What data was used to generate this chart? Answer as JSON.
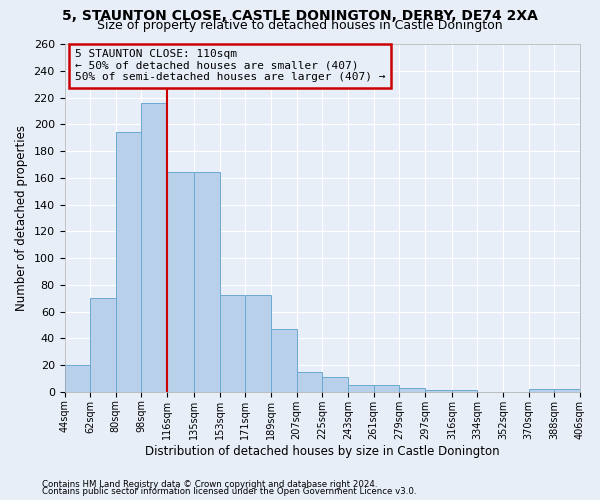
{
  "title1": "5, STAUNTON CLOSE, CASTLE DONINGTON, DERBY, DE74 2XA",
  "title2": "Size of property relative to detached houses in Castle Donington",
  "xlabel": "Distribution of detached houses by size in Castle Donington",
  "ylabel": "Number of detached properties",
  "bin_edges": [
    44,
    62,
    80,
    98,
    116,
    135,
    153,
    171,
    189,
    207,
    225,
    243,
    261,
    279,
    297,
    316,
    334,
    352,
    370,
    388,
    406
  ],
  "bar_heights": [
    20,
    70,
    194,
    216,
    164,
    164,
    72,
    72,
    47,
    15,
    11,
    5,
    5,
    3,
    1,
    1,
    0,
    0,
    2,
    2
  ],
  "bar_color": "#b8d0ea",
  "bar_edge_color": "#6aaad4",
  "property_line_x": 116,
  "property_line_color": "#cc0000",
  "annotation_line1": "5 STAUNTON CLOSE: 110sqm",
  "annotation_line2": "← 50% of detached houses are smaller (407)",
  "annotation_line3": "50% of semi-detached houses are larger (407) →",
  "annotation_box_color": "#cc0000",
  "background_color": "#e8eef8",
  "grid_color": "#ffffff",
  "ylim": [
    0,
    260
  ],
  "yticks": [
    0,
    20,
    40,
    60,
    80,
    100,
    120,
    140,
    160,
    180,
    200,
    220,
    240,
    260
  ],
  "footnote1": "Contains HM Land Registry data © Crown copyright and database right 2024.",
  "footnote2": "Contains public sector information licensed under the Open Government Licence v3.0.",
  "title1_fontsize": 10,
  "title2_fontsize": 9,
  "xlabel_fontsize": 8.5,
  "ylabel_fontsize": 8.5
}
